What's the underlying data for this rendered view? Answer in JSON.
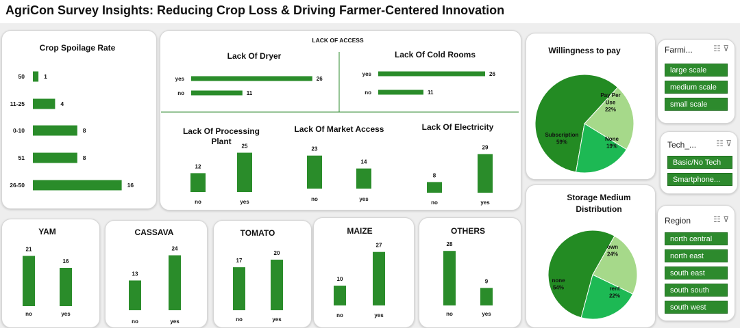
{
  "title": "AgriCon Survey Insights: Reducing Crop Loss & Driving Farmer-Centered Innovation",
  "colors": {
    "bar": "#2a8c2a",
    "dark": "#238b23",
    "mid": "#1db954",
    "light": "#a6d98a"
  },
  "chart_data": [
    {
      "id": "spoilage",
      "type": "bar",
      "orientation": "horizontal",
      "title": "Crop Spoilage Rate",
      "categories": [
        "50",
        "11-25",
        "0-10",
        "51",
        "26-50"
      ],
      "values": [
        1,
        4,
        8,
        8,
        16
      ]
    },
    {
      "id": "dryer",
      "type": "bar",
      "orientation": "horizontal",
      "group_title": "LACK OF ACCESS",
      "title": "Lack Of Dryer",
      "categories": [
        "yes",
        "no"
      ],
      "values": [
        26,
        11
      ]
    },
    {
      "id": "cold",
      "type": "bar",
      "orientation": "horizontal",
      "title": "Lack Of Cold Rooms",
      "categories": [
        "yes",
        "no"
      ],
      "values": [
        26,
        11
      ]
    },
    {
      "id": "processing",
      "type": "bar",
      "title": "Lack Of Processing Plant",
      "title_lines": [
        "Lack Of Processing",
        "Plant"
      ],
      "categories": [
        "no",
        "yes"
      ],
      "values": [
        12,
        25
      ]
    },
    {
      "id": "market",
      "type": "bar",
      "title": "Lack Of Market Access",
      "categories": [
        "no",
        "yes"
      ],
      "values": [
        23,
        14
      ]
    },
    {
      "id": "electricity",
      "type": "bar",
      "title": "Lack Of Electricity",
      "categories": [
        "no",
        "yes"
      ],
      "values": [
        8,
        29
      ]
    },
    {
      "id": "yam",
      "type": "bar",
      "title": "YAM",
      "categories": [
        "no",
        "yes"
      ],
      "values": [
        21,
        16
      ]
    },
    {
      "id": "cassava",
      "type": "bar",
      "title": "CASSAVA",
      "categories": [
        "no",
        "yes"
      ],
      "values": [
        13,
        24
      ]
    },
    {
      "id": "tomato",
      "type": "bar",
      "title": "TOMATO",
      "categories": [
        "no",
        "yes"
      ],
      "values": [
        17,
        20
      ]
    },
    {
      "id": "maize",
      "type": "bar",
      "title": "MAIZE",
      "categories": [
        "no",
        "yes"
      ],
      "values": [
        10,
        27
      ]
    },
    {
      "id": "others",
      "type": "bar",
      "title": "OTHERS",
      "categories": [
        "no",
        "yes"
      ],
      "values": [
        28,
        9
      ]
    },
    {
      "id": "willingness",
      "type": "pie",
      "title": "Willingness to pay",
      "slices": [
        {
          "label": "Subscription",
          "percent_label": "59%",
          "value": 59
        },
        {
          "label": "Pay Per Use",
          "label_lines": [
            "Pay Per",
            "Use"
          ],
          "percent_label": "22%",
          "value": 22
        },
        {
          "label": "None",
          "percent_label": "19%",
          "value": 19
        }
      ]
    },
    {
      "id": "storage",
      "type": "pie",
      "title": "Storage Medium Distribution",
      "title_lines": [
        "Storage Medium",
        "Distribution"
      ],
      "slices": [
        {
          "label": "none",
          "percent_label": "54%",
          "value": 54
        },
        {
          "label": "own",
          "percent_label": "24%",
          "value": 24
        },
        {
          "label": "rent",
          "percent_label": "22%",
          "value": 22
        }
      ]
    }
  ],
  "slicers": {
    "farming": {
      "title": "Farmi...",
      "items": [
        "large scale",
        "medium scale",
        "small scale"
      ]
    },
    "tech": {
      "title": "Tech_...",
      "items": [
        "Basic/No Tech",
        "Smartphone..."
      ]
    },
    "region": {
      "title": "Region",
      "items": [
        "north central",
        "north east",
        "south east",
        "south south",
        "south west"
      ]
    }
  }
}
